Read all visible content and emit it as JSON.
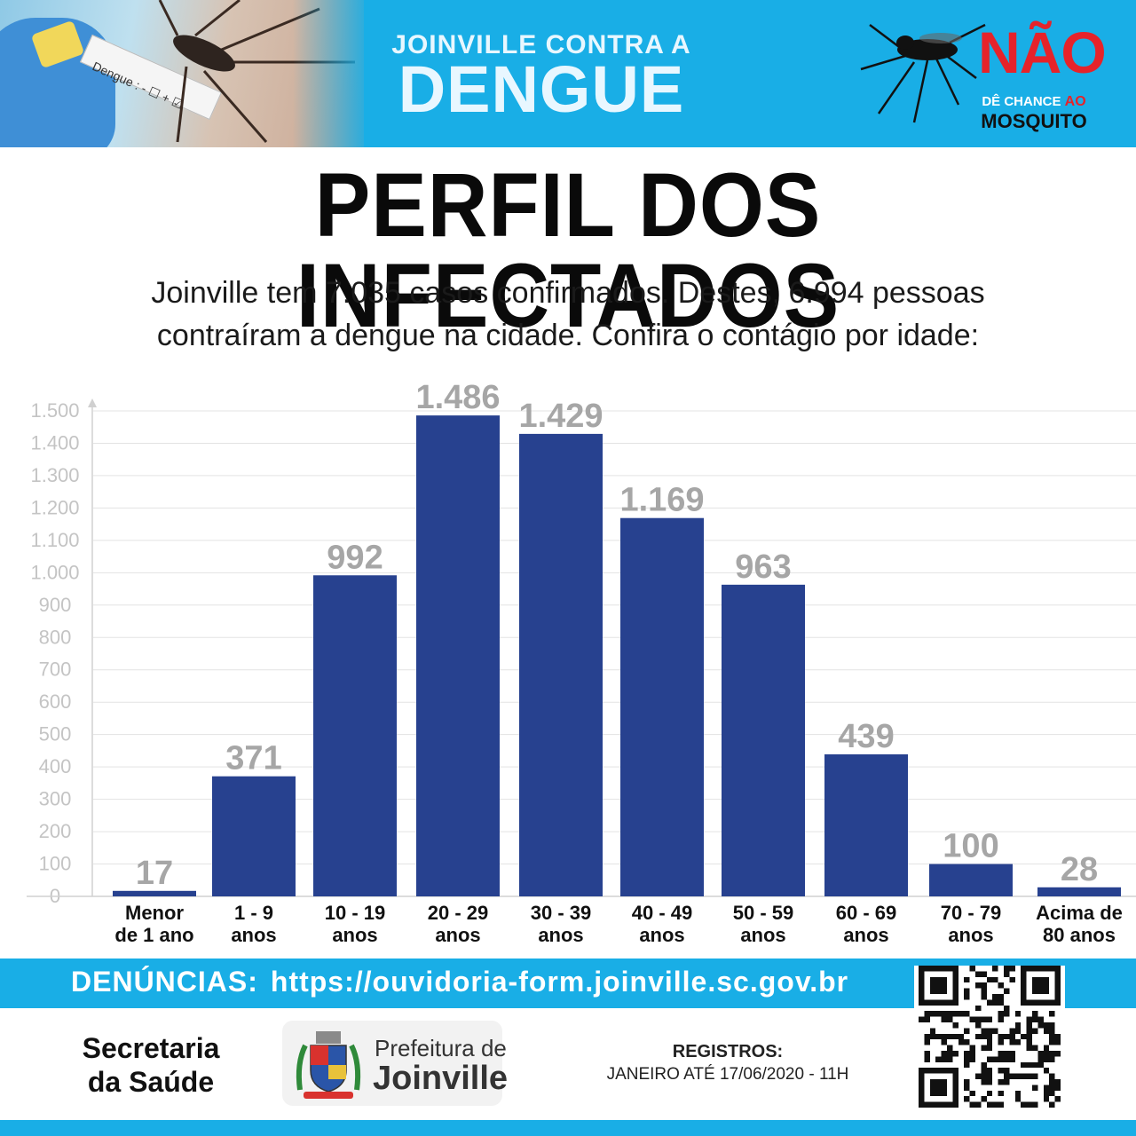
{
  "header": {
    "subtitle": "JOINVILLE CONTRA A",
    "title": "DENGUE",
    "photo_label": "Dengue : - ☐ + ☑",
    "campaign": {
      "word": "NÃO",
      "line1_a": "DÊ CHANCE",
      "line1_b": "AO",
      "line2": "MOSQUITO"
    }
  },
  "title": "PERFIL DOS INFECTADOS",
  "subtitle_lines": [
    "Joinville tem 7.035 casos confirmados. Destes, 6.994 pessoas",
    "contraíram a dengue na cidade. Confira o contágio por idade:"
  ],
  "chart_data": {
    "type": "bar",
    "categories": [
      [
        "Menor",
        "de 1 ano"
      ],
      [
        "1 - 9",
        "anos"
      ],
      [
        "10 - 19",
        "anos"
      ],
      [
        "20 - 29",
        "anos"
      ],
      [
        "30 - 39",
        "anos"
      ],
      [
        "40 - 49",
        "anos"
      ],
      [
        "50 - 59",
        "anos"
      ],
      [
        "60 - 69",
        "anos"
      ],
      [
        "70 - 79",
        "anos"
      ],
      [
        "Acima de",
        "80 anos"
      ]
    ],
    "values": [
      17,
      371,
      992,
      1486,
      1429,
      1169,
      963,
      439,
      100,
      28
    ],
    "value_labels": [
      "17",
      "371",
      "992",
      "1.486",
      "1.429",
      "1.169",
      "963",
      "439",
      "100",
      "28"
    ],
    "ylim": [
      0,
      1500
    ],
    "yticks": [
      0,
      100,
      200,
      300,
      400,
      500,
      600,
      700,
      800,
      900,
      1000,
      1100,
      1200,
      1300,
      1400,
      1500
    ],
    "ytick_labels": [
      "0",
      "100",
      "200",
      "300",
      "400",
      "500",
      "600",
      "700",
      "800",
      "900",
      "1.000",
      "1.100",
      "1.200",
      "1.300",
      "1.400",
      "1.500"
    ],
    "grid": true,
    "title": "",
    "xlabel": "",
    "ylabel": "",
    "bar_color": "#27418f",
    "label_color": "#a6a6a6"
  },
  "footer": {
    "denuncias_label": "DENÚNCIAS:",
    "denuncias_url": "https://ouvidoria-form.joinville.sc.gov.br",
    "secretaria_lines": [
      "Secretaria",
      "da Saúde"
    ],
    "prefeitura_line1": "Prefeitura de",
    "prefeitura_line2": "Joinville",
    "registros_label": "REGISTROS:",
    "registros_value": "JANEIRO ATÉ 17/06/2020 - 11H"
  },
  "colors": {
    "banner": "#19aee6",
    "bar": "#27418f",
    "accent_red": "#e6232a"
  }
}
